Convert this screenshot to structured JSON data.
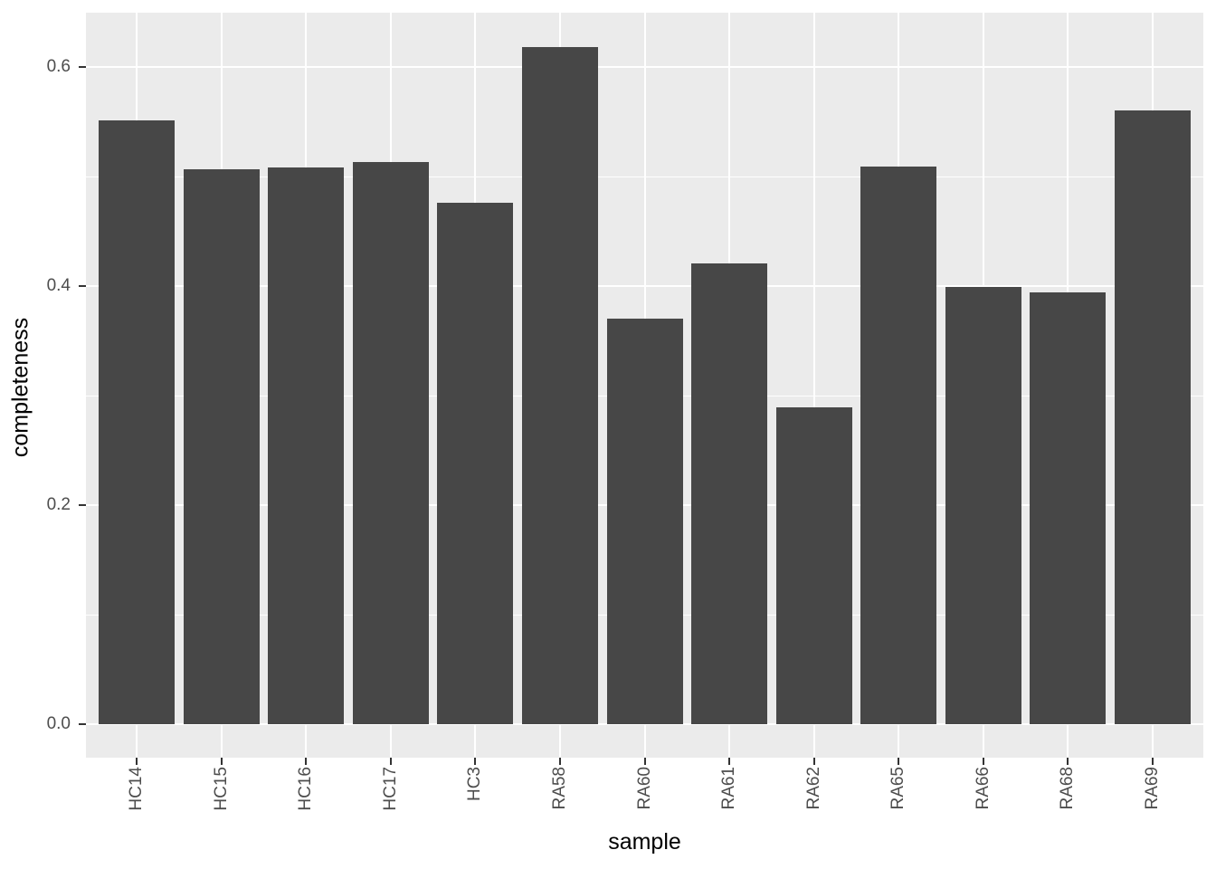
{
  "chart_data": {
    "type": "bar",
    "title": "",
    "xlabel": "sample",
    "ylabel": "completeness",
    "categories": [
      "HC14",
      "HC15",
      "HC16",
      "HC17",
      "HC3",
      "RA58",
      "RA60",
      "RA61",
      "RA62",
      "RA65",
      "RA66",
      "RA68",
      "RA69"
    ],
    "values": [
      0.551,
      0.507,
      0.508,
      0.513,
      0.476,
      0.618,
      0.37,
      0.421,
      0.289,
      0.509,
      0.399,
      0.394,
      0.56
    ],
    "y_ticks": [
      0.0,
      0.2,
      0.4,
      0.6
    ],
    "y_tick_labels": [
      "0.0",
      "0.2",
      "0.4",
      "0.6"
    ],
    "y_minor_ticks": [
      0.1,
      0.3,
      0.5
    ],
    "ylim": [
      -0.033,
      0.65
    ],
    "grid": true,
    "legend_position": "none",
    "style": "ggplot2-gray-theme",
    "colors": {
      "bar": "#474747",
      "panel_bg": "#EBEBEB",
      "grid": "#FFFFFF",
      "axis_text": "#4D4D4D",
      "axis_title": "#000000",
      "tick_marks": "#333333",
      "background": "#FFFFFF"
    }
  }
}
